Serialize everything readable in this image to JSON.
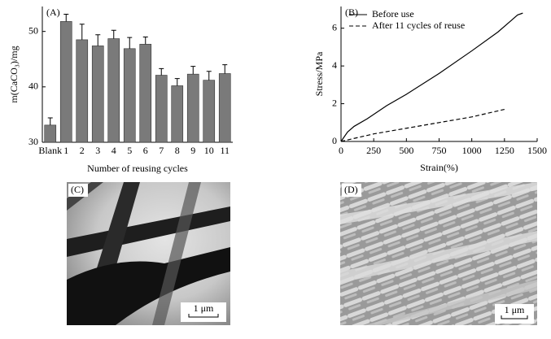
{
  "chart_data": [
    {
      "type": "bar",
      "panel_label": "(A)",
      "x_label": "Number of reusing cycles",
      "y_label": "m(CaCO₃)/mg",
      "categories": [
        "Blank",
        "1",
        "2",
        "3",
        "4",
        "5",
        "6",
        "7",
        "8",
        "9",
        "10",
        "11"
      ],
      "values": [
        33.1,
        51.8,
        48.5,
        47.4,
        48.7,
        46.9,
        47.7,
        42.1,
        40.2,
        42.3,
        41.2,
        42.4
      ],
      "errors": [
        1.3,
        1.3,
        2.8,
        2.0,
        1.5,
        2.0,
        1.3,
        1.2,
        1.3,
        1.4,
        1.6,
        1.6
      ],
      "color": "#7a7a7a",
      "ylim": [
        30,
        54.5
      ],
      "yticks": [
        30,
        40,
        50
      ]
    },
    {
      "type": "line",
      "panel_label": "(B)",
      "x_label": "Strain(%)",
      "y_label": "Stress/MPa",
      "series": [
        {
          "name": "Before use",
          "color": "#000000",
          "dash": "solid",
          "x": [
            0,
            50,
            100,
            200,
            350,
            500,
            750,
            1000,
            1200,
            1300,
            1350,
            1390
          ],
          "values": [
            0,
            0.5,
            0.8,
            1.2,
            1.9,
            2.5,
            3.6,
            4.8,
            5.8,
            6.4,
            6.7,
            6.8
          ]
        },
        {
          "name": "After 11 cycles of reuse",
          "color": "#000000",
          "dash": "dashed",
          "x": [
            0,
            250,
            500,
            750,
            1000,
            1250
          ],
          "values": [
            0,
            0.4,
            0.7,
            1.0,
            1.3,
            1.7
          ]
        }
      ],
      "xlim": [
        0,
        1500
      ],
      "xticks": [
        0,
        250,
        500,
        750,
        1000,
        1250,
        1500
      ],
      "ylim": [
        0,
        7.15
      ],
      "yticks": [
        0,
        2,
        4,
        6
      ],
      "legend": "upper left"
    }
  ],
  "images": [
    {
      "label": "(C)",
      "scale_bar": "1 μm"
    },
    {
      "label": "(D)",
      "scale_bar": "1 μm"
    }
  ]
}
